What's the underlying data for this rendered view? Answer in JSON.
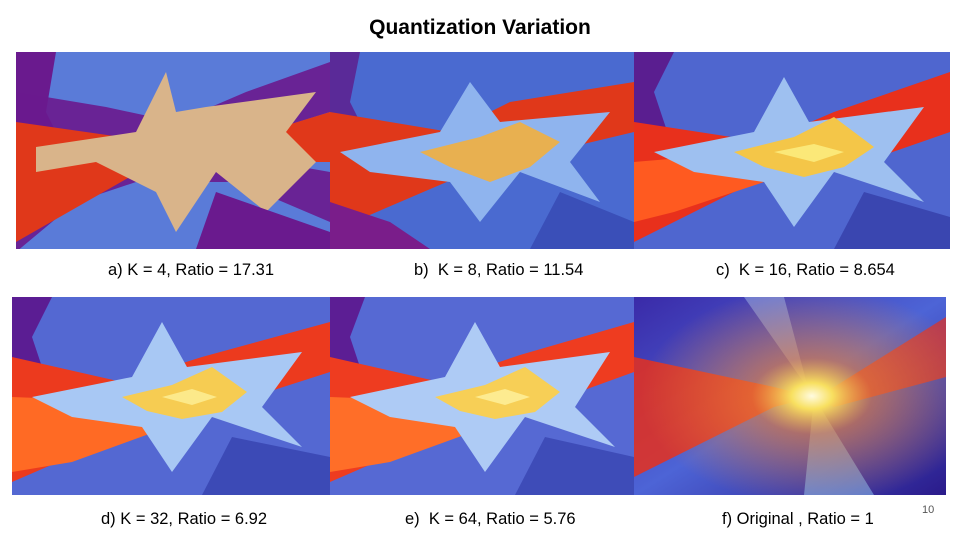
{
  "slide": {
    "title": "Quantization Variation",
    "number": "10"
  },
  "panels": [
    {
      "caption": "a) K = 4, Ratio = 17.31"
    },
    {
      "caption": "b)  K = 8, Ratio = 11.54"
    },
    {
      "caption": "c)  K = 16, Ratio = 8.654"
    },
    {
      "caption": "d) K = 32, Ratio = 6.92"
    },
    {
      "caption": "e)  K = 64, Ratio = 5.76"
    },
    {
      "caption": "f) Original , Ratio = 1"
    }
  ],
  "palette": {
    "purple": "#6a1a8e",
    "blue": "#5a7bd8",
    "red": "#e0381a",
    "peach": "#d9b48a",
    "yellow": "#f7d84a",
    "light_blue": "#8fb4ee"
  }
}
